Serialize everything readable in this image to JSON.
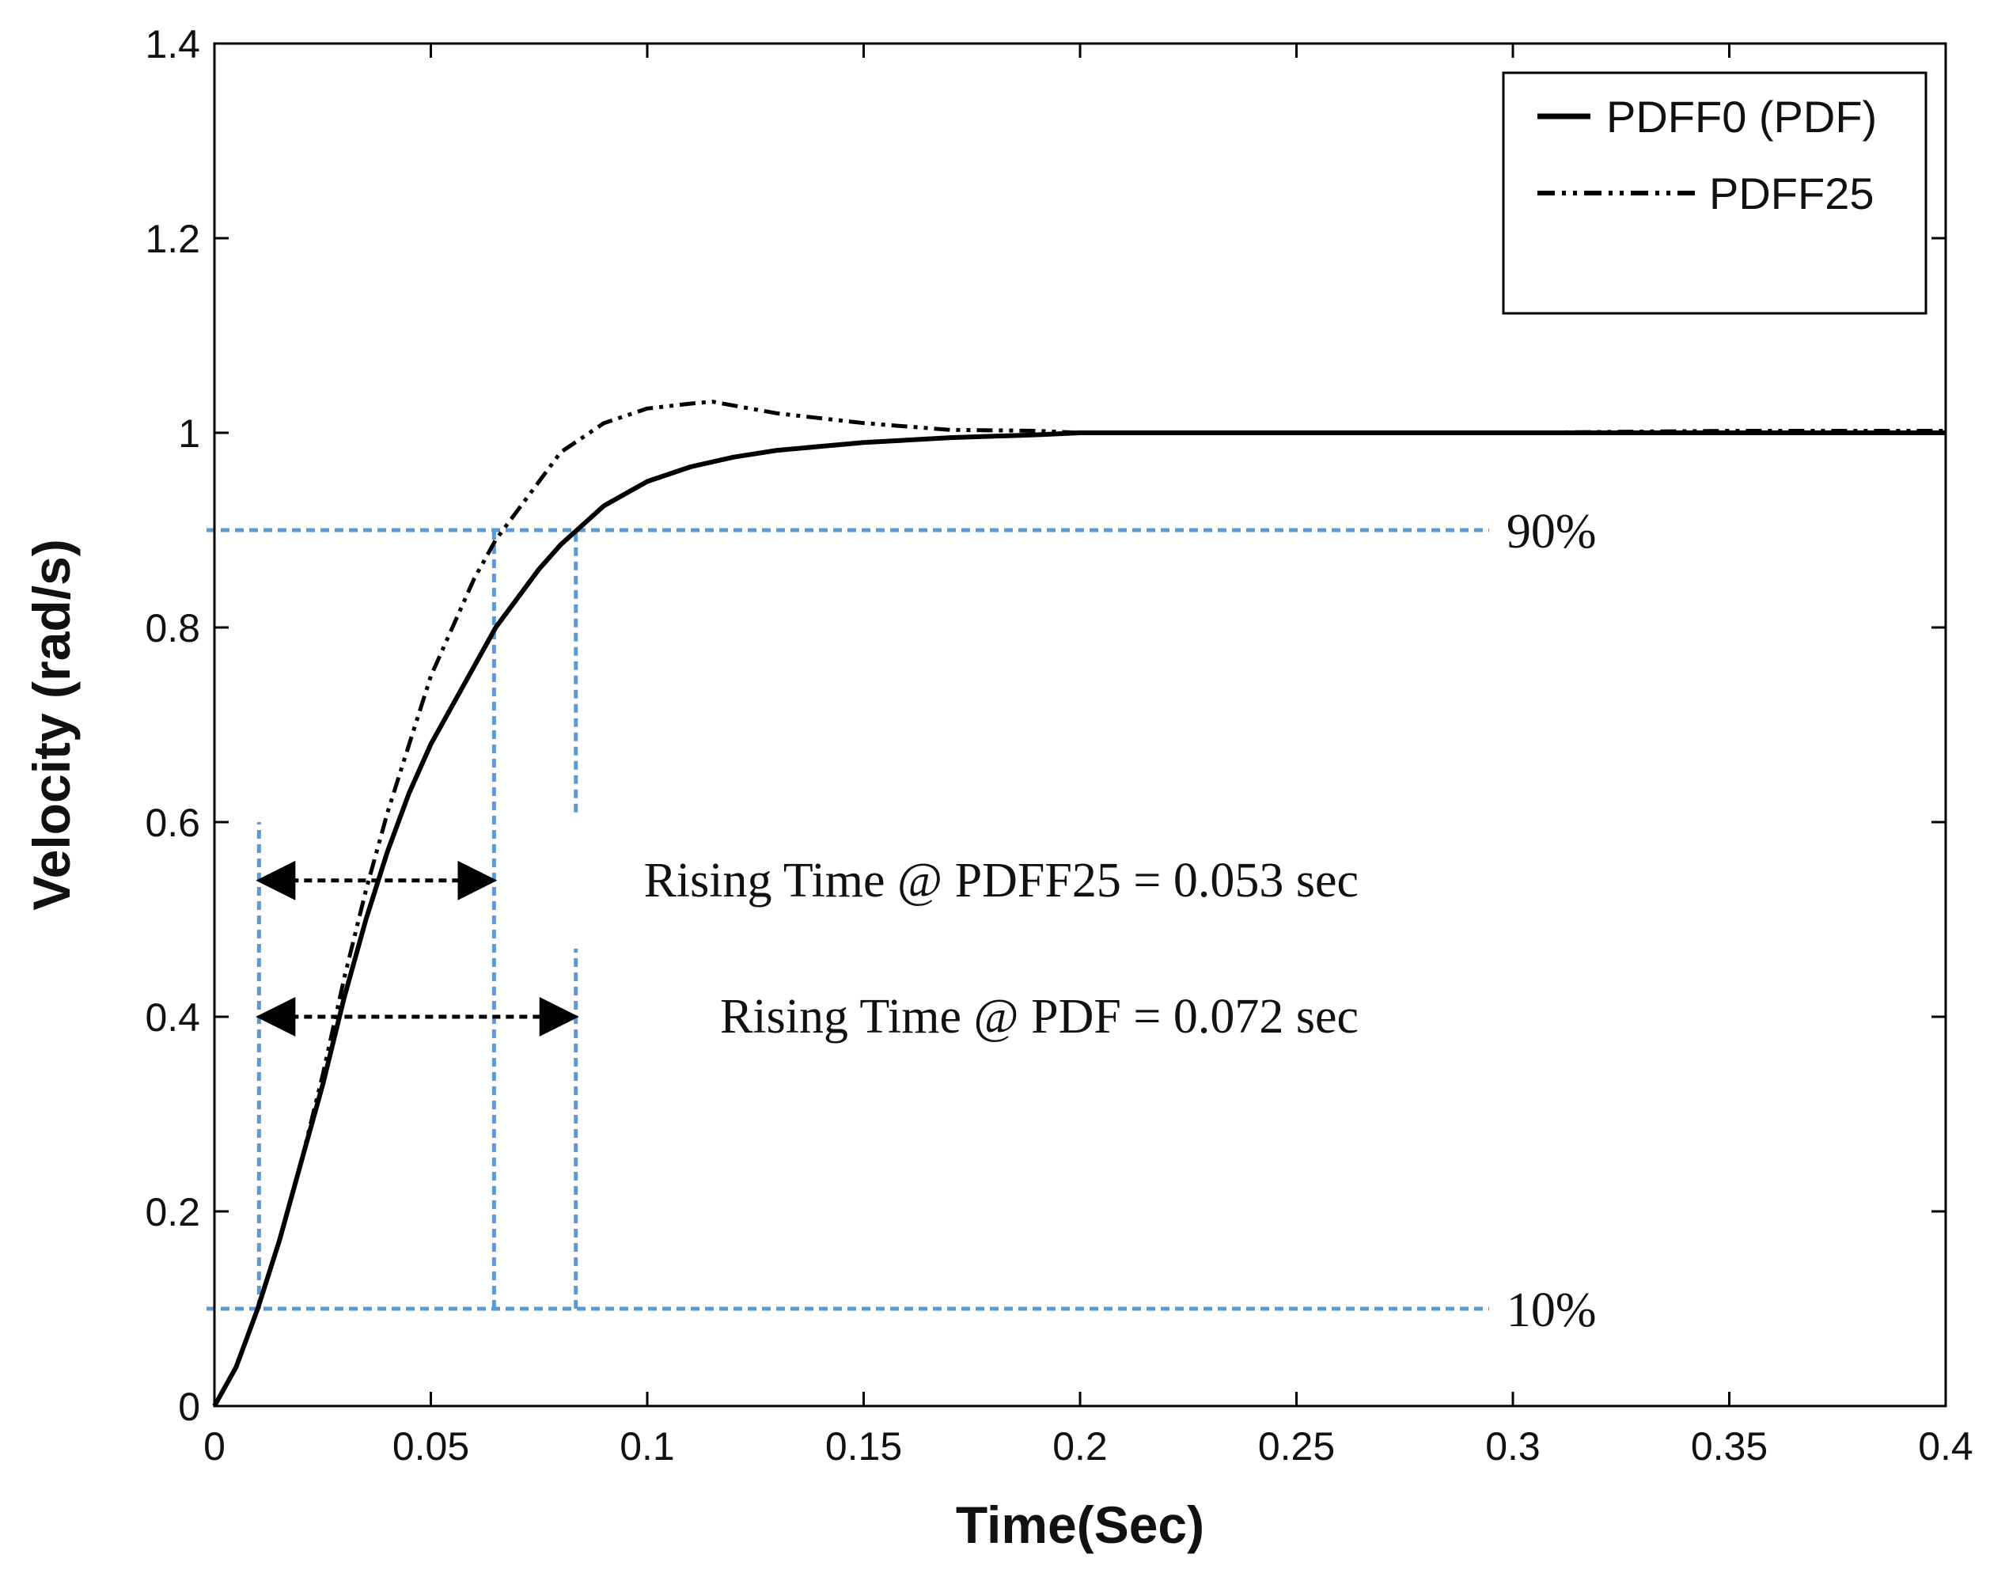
{
  "chart_data": {
    "type": "line",
    "title": "",
    "xlabel": "Time(Sec)",
    "ylabel": "Velocity (rad/s)",
    "xlim": [
      0,
      0.4
    ],
    "ylim": [
      0,
      1.4
    ],
    "xticks": [
      0,
      0.05,
      0.1,
      0.15,
      0.2,
      0.25,
      0.3,
      0.35,
      0.4
    ],
    "xtick_labels": [
      "0",
      "0.05",
      "0.1",
      "0.15",
      "0.2",
      "0.25",
      "0.3",
      "0.35",
      "0.4"
    ],
    "yticks": [
      0,
      0.2,
      0.4,
      0.6,
      0.8,
      1,
      1.2,
      1.4
    ],
    "ytick_labels": [
      "0",
      "0.2",
      "0.4",
      "0.6",
      "0.8",
      "1",
      "1.2",
      "1.4"
    ],
    "grid": false,
    "legend_position": "top-right",
    "series": [
      {
        "name": "PDFF0 (PDF)",
        "style": "solid",
        "x": [
          0,
          0.005,
          0.01,
          0.015,
          0.02,
          0.025,
          0.03,
          0.035,
          0.04,
          0.045,
          0.05,
          0.055,
          0.06,
          0.065,
          0.07,
          0.075,
          0.08,
          0.085,
          0.09,
          0.1,
          0.11,
          0.12,
          0.13,
          0.15,
          0.17,
          0.19,
          0.2,
          0.25,
          0.3,
          0.35,
          0.4
        ],
        "y": [
          0,
          0.04,
          0.1,
          0.17,
          0.25,
          0.33,
          0.42,
          0.5,
          0.57,
          0.63,
          0.68,
          0.72,
          0.76,
          0.8,
          0.83,
          0.86,
          0.885,
          0.905,
          0.925,
          0.95,
          0.965,
          0.975,
          0.982,
          0.99,
          0.995,
          0.998,
          1.0,
          1.0,
          1.0,
          1.0,
          1.0
        ]
      },
      {
        "name": "PDFF25",
        "style": "dashdotdot",
        "x": [
          0,
          0.005,
          0.01,
          0.015,
          0.02,
          0.025,
          0.03,
          0.035,
          0.04,
          0.045,
          0.05,
          0.055,
          0.06,
          0.065,
          0.07,
          0.075,
          0.08,
          0.085,
          0.09,
          0.1,
          0.11,
          0.115,
          0.12,
          0.13,
          0.15,
          0.17,
          0.19,
          0.2,
          0.25,
          0.3,
          0.35,
          0.4
        ],
        "y": [
          0,
          0.04,
          0.1,
          0.17,
          0.25,
          0.34,
          0.44,
          0.53,
          0.61,
          0.68,
          0.75,
          0.8,
          0.85,
          0.89,
          0.92,
          0.95,
          0.98,
          0.995,
          1.01,
          1.025,
          1.03,
          1.032,
          1.028,
          1.02,
          1.01,
          1.003,
          1.002,
          1.0,
          1.0,
          1.0,
          1.002,
          1.002
        ]
      }
    ],
    "reference_lines": {
      "horizontal": [
        {
          "y": 0.1,
          "label": "10%"
        },
        {
          "y": 0.9,
          "label": "90%"
        }
      ],
      "vertical": [
        0.0103,
        0.0646,
        0.0835
      ]
    },
    "annotations": [
      {
        "text": "Rising Time @ PDFF25 = 0.053 sec",
        "arrow_from": 0.0103,
        "arrow_to": 0.0646,
        "at_y": 0.54
      },
      {
        "text": "Rising Time @ PDF = 0.072 sec",
        "arrow_from": 0.0103,
        "arrow_to": 0.0835,
        "at_y": 0.4
      }
    ],
    "colors": {
      "series": "#000000",
      "reference": "#5b9bd5",
      "arrows": "#000000"
    }
  }
}
